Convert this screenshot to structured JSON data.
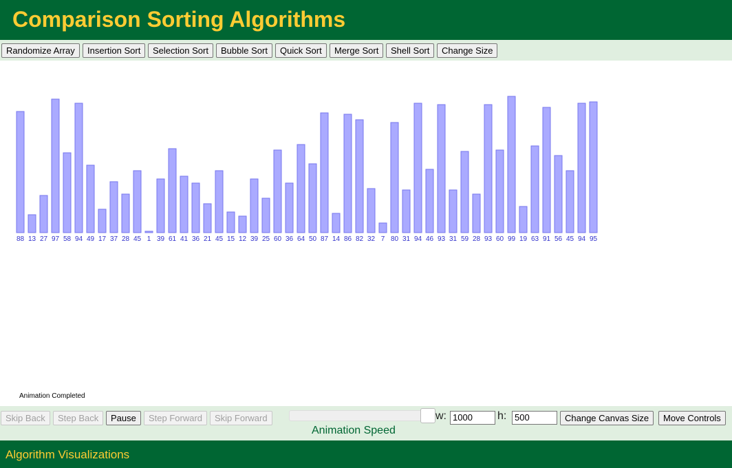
{
  "header": {
    "title": "Comparison Sorting Algorithms"
  },
  "toolbar": {
    "buttons": [
      "Randomize Array",
      "Insertion Sort",
      "Selection Sort",
      "Bubble Sort",
      "Quick Sort",
      "Merge Sort",
      "Shell Sort",
      "Change Size"
    ]
  },
  "array": {
    "values": [
      88,
      13,
      27,
      97,
      58,
      94,
      49,
      17,
      37,
      28,
      45,
      1,
      39,
      61,
      41,
      36,
      21,
      45,
      15,
      12,
      39,
      25,
      60,
      36,
      64,
      50,
      87,
      14,
      86,
      82,
      32,
      7,
      80,
      31,
      94,
      46,
      93,
      31,
      59,
      28,
      93,
      60,
      99,
      19,
      63,
      91,
      56,
      45,
      94,
      95
    ],
    "color": "#aaaaff"
  },
  "status": "Animation Completed",
  "controls": {
    "buttons": [
      {
        "label": "Skip Back",
        "enabled": false
      },
      {
        "label": "Step Back",
        "enabled": false
      },
      {
        "label": "Pause",
        "enabled": true
      },
      {
        "label": "Step Forward",
        "enabled": false
      },
      {
        "label": "Skip Forward",
        "enabled": false
      }
    ],
    "width_label": "w:",
    "width_value": "1000",
    "height_label": "h:",
    "height_value": "500",
    "canvas_button": "Change Canvas Size",
    "move_button": "Move Controls",
    "speed_label": "Animation Speed"
  },
  "footer": {
    "title": "Algorithm Visualizations"
  }
}
